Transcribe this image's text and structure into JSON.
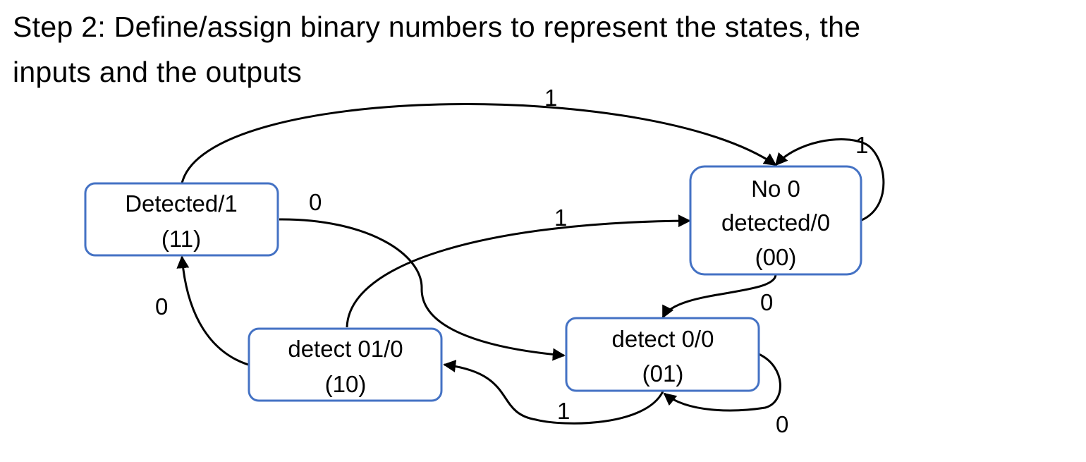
{
  "title": {
    "line1": "Step 2: Define/assign binary numbers to represent the states, the",
    "line2": "inputs and the outputs"
  },
  "diagram": {
    "states": {
      "detected": {
        "name": "Detected/1",
        "code": "(11)"
      },
      "no0": {
        "name_line1": "No 0",
        "name_line2": "detected/0",
        "code": "(00)"
      },
      "detect01": {
        "name": "detect 01/0",
        "code": "(10)"
      },
      "detect0": {
        "name": "detect 0/0",
        "code": "(01)"
      }
    },
    "transitions": {
      "detected_to_no0": "1",
      "no0_self": "1",
      "detected_to_detect0": "0",
      "detect01_to_no0": "1",
      "no0_to_detect0": "0",
      "detect01_to_detected": "0",
      "detect0_to_detect01": "1",
      "detect0_self": "0"
    },
    "colors": {
      "state_border": "#4472c4",
      "edge": "#000000"
    }
  }
}
